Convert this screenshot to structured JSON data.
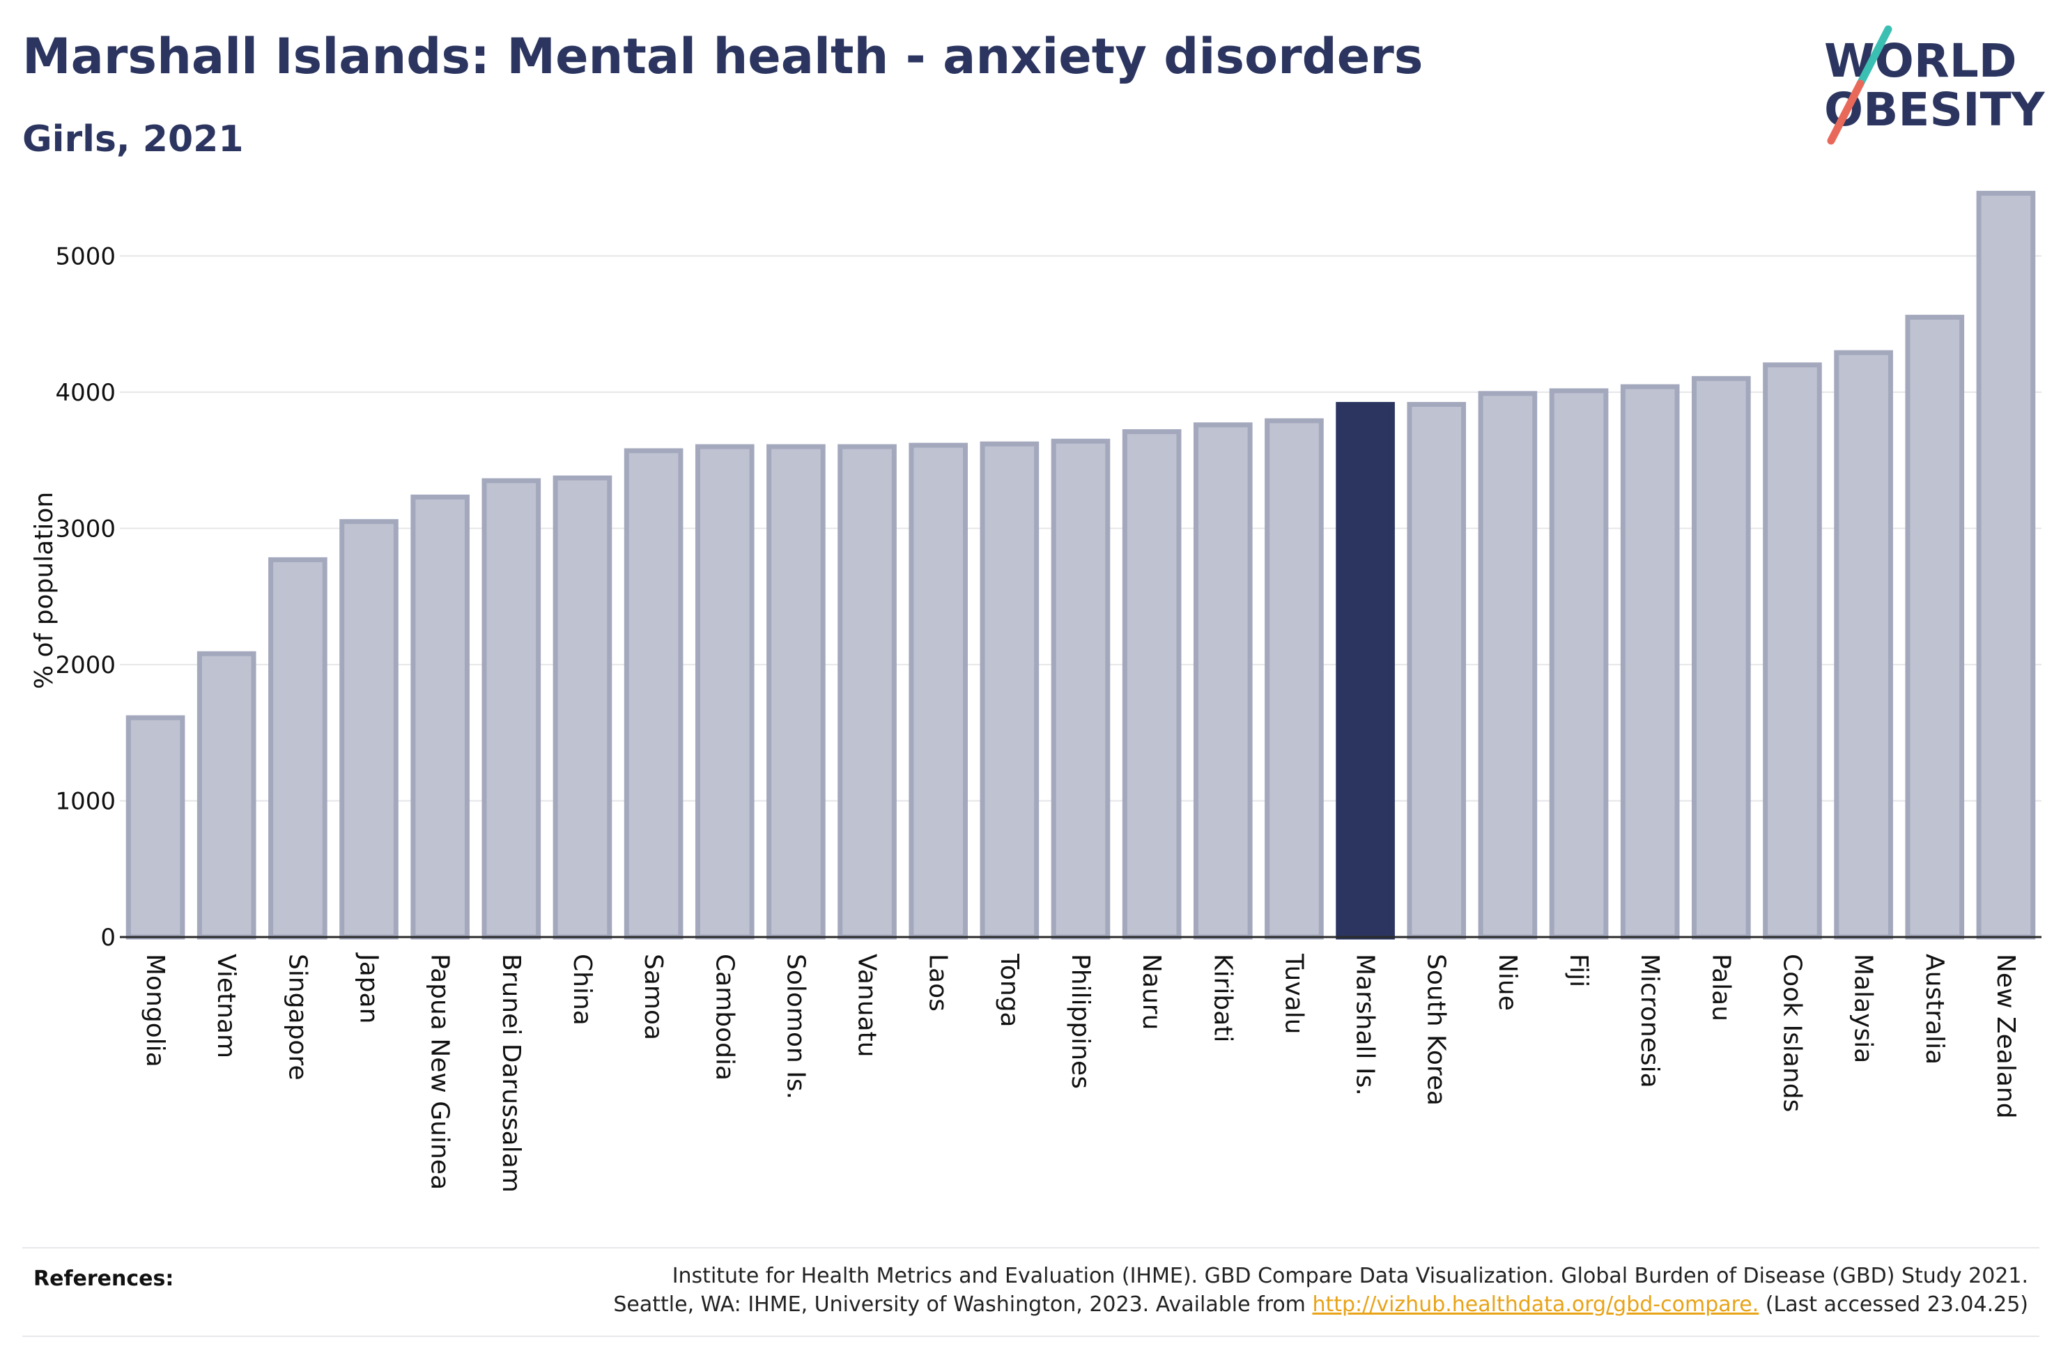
{
  "header": {
    "title": "Marshall Islands: Mental health - anxiety disorders",
    "subtitle": "Girls, 2021"
  },
  "logo": {
    "line1": "WORLD",
    "line2": "OBESITY",
    "accent_teal": "#3cbfb3",
    "accent_coral": "#e8685a"
  },
  "colors": {
    "bar_default": "#bfc2d1",
    "bar_default_stroke": "#a3a8bd",
    "bar_highlight": "#2b355f",
    "text": "#2b355f",
    "link": "#e8a317"
  },
  "chart_data": {
    "type": "bar",
    "title": "Marshall Islands: Mental health - anxiety disorders",
    "subtitle": "Girls, 2021",
    "ylabel": "% of population",
    "xlabel": "",
    "ylim": [
      0,
      5600
    ],
    "yticks": [
      0,
      1000,
      2000,
      3000,
      4000,
      5000
    ],
    "grid": true,
    "highlight": "Marshall Is.",
    "categories": [
      "Mongolia",
      "Vietnam",
      "Singapore",
      "Japan",
      "Papua New Guinea",
      "Brunei Darussalam",
      "China",
      "Samoa",
      "Cambodia",
      "Solomon Is.",
      "Vanuatu",
      "Laos",
      "Tonga",
      "Philippines",
      "Nauru",
      "Kiribati",
      "Tuvalu",
      "Marshall Is.",
      "South Korea",
      "Niue",
      "Fiji",
      "Micronesia",
      "Palau",
      "Cook Islands",
      "Malaysia",
      "Australia",
      "New Zealand"
    ],
    "values": [
      1610,
      2080,
      2770,
      3050,
      3230,
      3350,
      3370,
      3570,
      3600,
      3600,
      3600,
      3610,
      3620,
      3640,
      3710,
      3760,
      3790,
      3910,
      3910,
      3990,
      4010,
      4040,
      4100,
      4200,
      4290,
      4550,
      5460
    ]
  },
  "references": {
    "label": "References:",
    "line1": "Institute for Health Metrics and Evaluation (IHME). GBD Compare Data Visualization. Global Burden of Disease (GBD) Study 2021.",
    "line2_prefix": "Seattle, WA: IHME, University of Washington, 2023. Available from ",
    "link": "http://vizhub.healthdata.org/gbd-compare.",
    "line2_suffix": " (Last accessed 23.04.25)"
  }
}
